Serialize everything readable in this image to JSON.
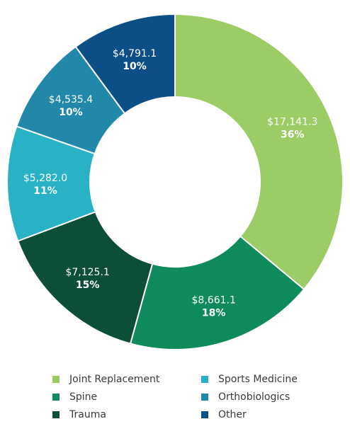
{
  "chart_data": {
    "type": "pie",
    "donut": true,
    "legend_position": "bottom",
    "slices": [
      {
        "name": "Joint Replacement",
        "value": 17141.3,
        "value_label": "$17,141.3",
        "percent_label": "36%",
        "color": "#9ccc65"
      },
      {
        "name": "Spine",
        "value": 8661.1,
        "value_label": "$8,661.1",
        "percent_label": "18%",
        "color": "#0e8a5b"
      },
      {
        "name": "Trauma",
        "value": 7125.1,
        "value_label": "$7,125.1",
        "percent_label": "15%",
        "color": "#0d4f36"
      },
      {
        "name": "Sports Medicine",
        "value": 5282.0,
        "value_label": "$5,282.0",
        "percent_label": "11%",
        "color": "#29b2c6"
      },
      {
        "name": "Orthobiologics",
        "value": 4535.4,
        "value_label": "$4,535.4",
        "percent_label": "10%",
        "color": "#2188a9"
      },
      {
        "name": "Other",
        "value": 4791.1,
        "value_label": "$4,791.1",
        "percent_label": "10%",
        "color": "#0c4f87"
      }
    ]
  }
}
